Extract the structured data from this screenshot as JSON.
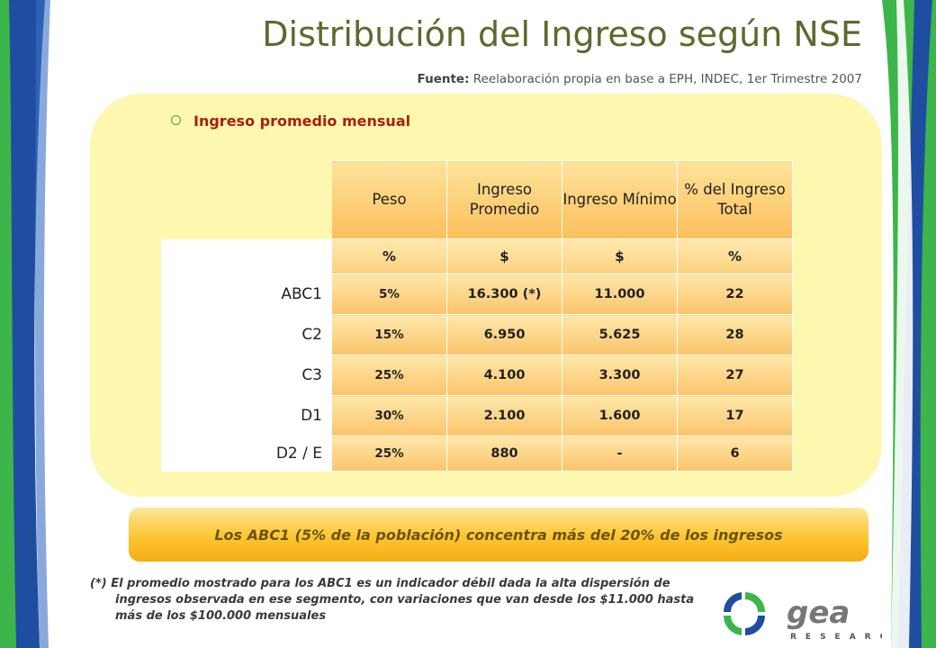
{
  "title": "Distribución del Ingreso según NSE",
  "source": {
    "label": "Fuente:",
    "text": "Reelaboración propia en base a EPH, INDEC, 1er Trimestre 2007"
  },
  "section": {
    "bullet": "Ingreso promedio mensual"
  },
  "table": {
    "headers": [
      "Peso",
      "Ingreso Promedio",
      "Ingreso Mínimo",
      "% del Ingreso Total"
    ],
    "units": [
      "%",
      "$",
      "$",
      "%"
    ],
    "rows": [
      {
        "label": "ABC1",
        "cells": [
          "5%",
          "16.300 (*)",
          "11.000",
          "22"
        ]
      },
      {
        "label": "C2",
        "cells": [
          "15%",
          "6.950",
          "5.625",
          "28"
        ]
      },
      {
        "label": "C3",
        "cells": [
          "25%",
          "4.100",
          "3.300",
          "27"
        ]
      },
      {
        "label": "D1",
        "cells": [
          "30%",
          "2.100",
          "1.600",
          "17"
        ]
      },
      {
        "label": "D2 / E",
        "cells": [
          "25%",
          "880",
          "-",
          "6"
        ]
      }
    ]
  },
  "banner": {
    "text": "Los ABC1 (5% de la población) concentra más del 20% de los ingresos"
  },
  "footnote": {
    "line1": "(*) El promedio mostrado para los ABC1 es un indicador débil dada la alta dispersión  de",
    "line2": "ingresos observada en ese segmento, con variaciones que van desde los $11.000 hasta",
    "line3": "más de los $100.000 mensuales"
  },
  "logo": {
    "name": "gea",
    "sub": "RESEARCH"
  },
  "colors": {
    "title": "#5c6a2c",
    "bullet": "#a8200e",
    "panel": "#fdf7b0",
    "green": "#3db54a",
    "blue": "#1f4ea0"
  }
}
